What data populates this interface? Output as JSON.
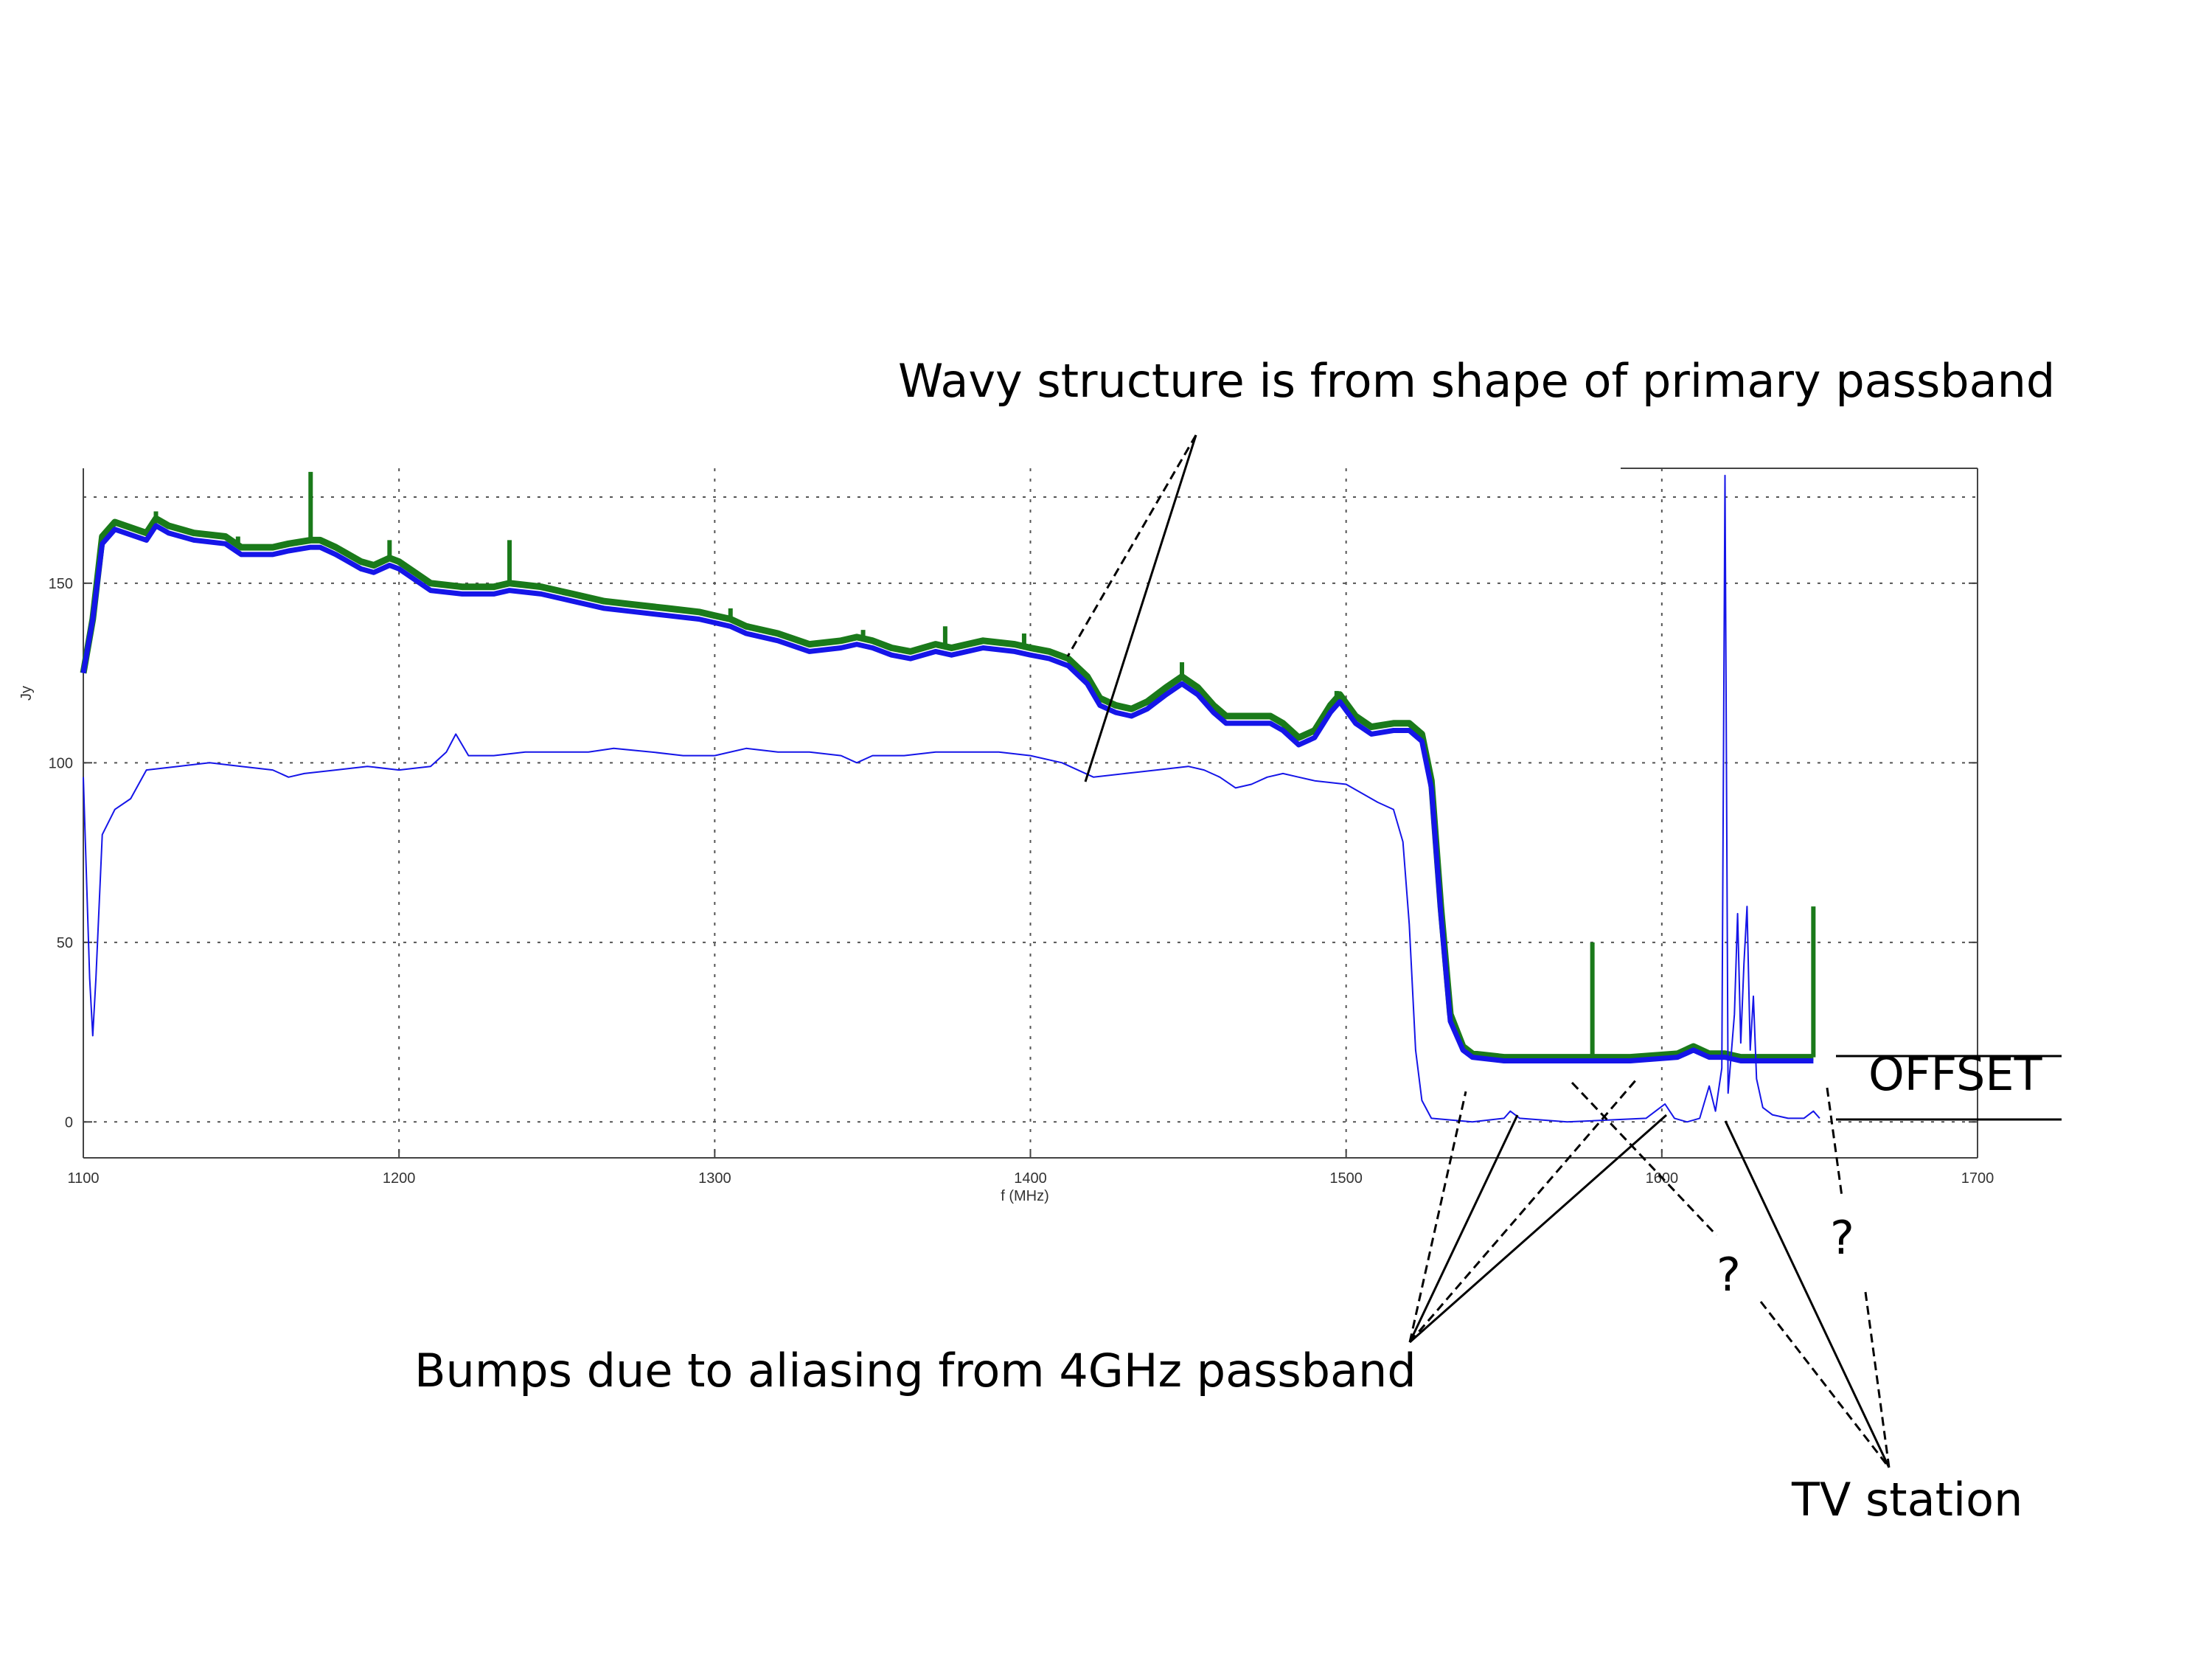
{
  "chart_data": {
    "type": "line",
    "xlabel": "f (MHz)",
    "ylabel": "Jy",
    "xlim": [
      1100,
      1700
    ],
    "ylim": [
      -10,
      182
    ],
    "grid": true,
    "x_ticks": [
      "1100",
      "1200",
      "1300",
      "1400",
      "1500",
      "1600",
      "1700"
    ],
    "y_ticks": [
      "0",
      "50",
      "100",
      "150"
    ],
    "series": [
      {
        "color": "#1a7a1a",
        "points": [
          [
            1100,
            125
          ],
          [
            1103,
            140
          ],
          [
            1106,
            163
          ],
          [
            1110,
            167
          ],
          [
            1120,
            164
          ],
          [
            1123,
            168
          ],
          [
            1127,
            166
          ],
          [
            1135,
            164
          ],
          [
            1145,
            163
          ],
          [
            1150,
            160
          ],
          [
            1160,
            160
          ],
          [
            1165,
            161
          ],
          [
            1172,
            162
          ],
          [
            1175,
            162
          ],
          [
            1180,
            160
          ],
          [
            1188,
            156
          ],
          [
            1192,
            155
          ],
          [
            1197,
            157
          ],
          [
            1200,
            156
          ],
          [
            1205,
            153
          ],
          [
            1210,
            150
          ],
          [
            1220,
            149
          ],
          [
            1230,
            149
          ],
          [
            1235,
            150
          ],
          [
            1245,
            149
          ],
          [
            1255,
            147
          ],
          [
            1265,
            145
          ],
          [
            1275,
            144
          ],
          [
            1285,
            143
          ],
          [
            1295,
            142
          ],
          [
            1300,
            141
          ],
          [
            1305,
            140
          ],
          [
            1310,
            138
          ],
          [
            1320,
            136
          ],
          [
            1330,
            133
          ],
          [
            1340,
            134
          ],
          [
            1345,
            135
          ],
          [
            1350,
            134
          ],
          [
            1356,
            132
          ],
          [
            1362,
            131
          ],
          [
            1370,
            133
          ],
          [
            1375,
            132
          ],
          [
            1385,
            134
          ],
          [
            1395,
            133
          ],
          [
            1400,
            132
          ],
          [
            1406,
            131
          ],
          [
            1412,
            129
          ],
          [
            1418,
            124
          ],
          [
            1422,
            118
          ],
          [
            1427,
            116
          ],
          [
            1432,
            115
          ],
          [
            1437,
            117
          ],
          [
            1443,
            121
          ],
          [
            1448,
            124
          ],
          [
            1453,
            121
          ],
          [
            1458,
            116
          ],
          [
            1462,
            113
          ],
          [
            1470,
            113
          ],
          [
            1476,
            113
          ],
          [
            1480,
            111
          ],
          [
            1485,
            107
          ],
          [
            1490,
            109
          ],
          [
            1495,
            116
          ],
          [
            1498,
            119
          ],
          [
            1503,
            113
          ],
          [
            1508,
            110
          ],
          [
            1515,
            111
          ],
          [
            1520,
            111
          ],
          [
            1524,
            108
          ],
          [
            1527,
            95
          ],
          [
            1530,
            60
          ],
          [
            1533,
            30
          ],
          [
            1537,
            21
          ],
          [
            1540,
            19
          ],
          [
            1550,
            18
          ],
          [
            1570,
            18
          ],
          [
            1578,
            18
          ],
          [
            1590,
            18
          ],
          [
            1605,
            19
          ],
          [
            1610,
            21
          ],
          [
            1615,
            19
          ],
          [
            1620,
            19
          ],
          [
            1625,
            18
          ],
          [
            1648,
            18
          ]
        ]
      },
      {
        "color": "#1515e8",
        "points": [
          [
            1100,
            125
          ],
          [
            1103,
            140
          ],
          [
            1106,
            161
          ],
          [
            1110,
            165
          ],
          [
            1120,
            162
          ],
          [
            1123,
            166
          ],
          [
            1127,
            164
          ],
          [
            1135,
            162
          ],
          [
            1145,
            161
          ],
          [
            1150,
            158
          ],
          [
            1160,
            158
          ],
          [
            1165,
            159
          ],
          [
            1172,
            160
          ],
          [
            1175,
            160
          ],
          [
            1180,
            158
          ],
          [
            1188,
            154
          ],
          [
            1192,
            153
          ],
          [
            1197,
            155
          ],
          [
            1200,
            154
          ],
          [
            1205,
            151
          ],
          [
            1210,
            148
          ],
          [
            1220,
            147
          ],
          [
            1230,
            147
          ],
          [
            1235,
            148
          ],
          [
            1245,
            147
          ],
          [
            1255,
            145
          ],
          [
            1265,
            143
          ],
          [
            1275,
            142
          ],
          [
            1285,
            141
          ],
          [
            1295,
            140
          ],
          [
            1300,
            139
          ],
          [
            1305,
            138
          ],
          [
            1310,
            136
          ],
          [
            1320,
            134
          ],
          [
            1330,
            131
          ],
          [
            1340,
            132
          ],
          [
            1345,
            133
          ],
          [
            1350,
            132
          ],
          [
            1356,
            130
          ],
          [
            1362,
            129
          ],
          [
            1370,
            131
          ],
          [
            1375,
            130
          ],
          [
            1385,
            132
          ],
          [
            1395,
            131
          ],
          [
            1400,
            130
          ],
          [
            1406,
            129
          ],
          [
            1412,
            127
          ],
          [
            1418,
            122
          ],
          [
            1422,
            116
          ],
          [
            1427,
            114
          ],
          [
            1432,
            113
          ],
          [
            1437,
            115
          ],
          [
            1443,
            119
          ],
          [
            1448,
            122
          ],
          [
            1453,
            119
          ],
          [
            1458,
            114
          ],
          [
            1462,
            111
          ],
          [
            1470,
            111
          ],
          [
            1476,
            111
          ],
          [
            1480,
            109
          ],
          [
            1485,
            105
          ],
          [
            1490,
            107
          ],
          [
            1495,
            114
          ],
          [
            1498,
            117
          ],
          [
            1503,
            111
          ],
          [
            1508,
            108
          ],
          [
            1515,
            109
          ],
          [
            1520,
            109
          ],
          [
            1524,
            106
          ],
          [
            1527,
            93
          ],
          [
            1530,
            58
          ],
          [
            1533,
            28
          ],
          [
            1537,
            20
          ],
          [
            1540,
            18
          ],
          [
            1550,
            17
          ],
          [
            1570,
            17
          ],
          [
            1578,
            17
          ],
          [
            1590,
            17
          ],
          [
            1605,
            18
          ],
          [
            1610,
            20
          ],
          [
            1615,
            18
          ],
          [
            1620,
            18
          ],
          [
            1625,
            17
          ],
          [
            1648,
            17
          ]
        ]
      },
      {
        "color": "#1515e8",
        "points": [
          [
            1100,
            96
          ],
          [
            1102,
            40
          ],
          [
            1103,
            24
          ],
          [
            1104,
            40
          ],
          [
            1106,
            80
          ],
          [
            1110,
            87
          ],
          [
            1115,
            90
          ],
          [
            1120,
            98
          ],
          [
            1130,
            99
          ],
          [
            1140,
            100
          ],
          [
            1150,
            99
          ],
          [
            1160,
            98
          ],
          [
            1165,
            96
          ],
          [
            1170,
            97
          ],
          [
            1180,
            98
          ],
          [
            1190,
            99
          ],
          [
            1200,
            98
          ],
          [
            1210,
            99
          ],
          [
            1215,
            103
          ],
          [
            1218,
            108
          ],
          [
            1222,
            102
          ],
          [
            1230,
            102
          ],
          [
            1240,
            103
          ],
          [
            1250,
            103
          ],
          [
            1260,
            103
          ],
          [
            1268,
            104
          ],
          [
            1280,
            103
          ],
          [
            1290,
            102
          ],
          [
            1300,
            102
          ],
          [
            1310,
            104
          ],
          [
            1320,
            103
          ],
          [
            1330,
            103
          ],
          [
            1340,
            102
          ],
          [
            1345,
            100
          ],
          [
            1350,
            102
          ],
          [
            1360,
            102
          ],
          [
            1370,
            103
          ],
          [
            1380,
            103
          ],
          [
            1390,
            103
          ],
          [
            1400,
            102
          ],
          [
            1410,
            100
          ],
          [
            1420,
            96
          ],
          [
            1430,
            97
          ],
          [
            1440,
            98
          ],
          [
            1450,
            99
          ],
          [
            1455,
            98
          ],
          [
            1460,
            96
          ],
          [
            1465,
            93
          ],
          [
            1470,
            94
          ],
          [
            1475,
            96
          ],
          [
            1480,
            97
          ],
          [
            1485,
            96
          ],
          [
            1490,
            95
          ],
          [
            1500,
            94
          ],
          [
            1510,
            89
          ],
          [
            1515,
            87
          ],
          [
            1518,
            78
          ],
          [
            1520,
            55
          ],
          [
            1522,
            20
          ],
          [
            1524,
            6
          ],
          [
            1527,
            1
          ],
          [
            1540,
            0
          ],
          [
            1550,
            1
          ],
          [
            1552,
            3
          ],
          [
            1555,
            1
          ],
          [
            1570,
            0
          ],
          [
            1595,
            1
          ],
          [
            1598,
            3
          ],
          [
            1601,
            5
          ],
          [
            1604,
            1
          ],
          [
            1608,
            0
          ],
          [
            1612,
            1
          ],
          [
            1615,
            10
          ],
          [
            1617,
            3
          ],
          [
            1619,
            15
          ],
          [
            1620,
            180
          ],
          [
            1621,
            8
          ],
          [
            1623,
            30
          ],
          [
            1624,
            58
          ],
          [
            1625,
            22
          ],
          [
            1626,
            44
          ],
          [
            1627,
            60
          ],
          [
            1628,
            20
          ],
          [
            1629,
            35
          ],
          [
            1630,
            12
          ],
          [
            1632,
            4
          ],
          [
            1635,
            2
          ],
          [
            1640,
            1
          ],
          [
            1645,
            1
          ],
          [
            1648,
            3
          ],
          [
            1650,
            1
          ]
        ]
      }
    ],
    "annotations": [
      "Wavy structure is from shape of primary passband",
      "Bumps due to aliasing from 4GHz passband",
      "OFFSET",
      "?",
      "?",
      "TV station"
    ]
  }
}
